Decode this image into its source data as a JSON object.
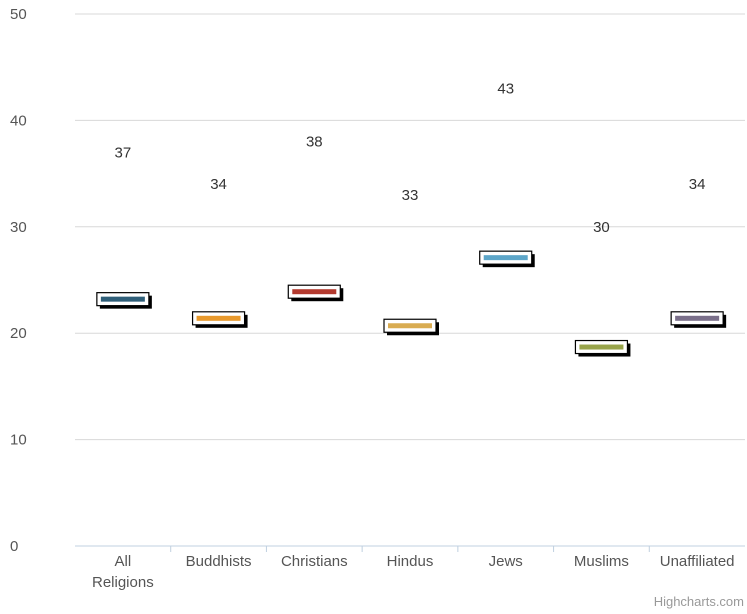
{
  "chart_data": {
    "type": "bar",
    "categories": [
      "All\nReligions",
      "Buddhists",
      "Christians",
      "Hindus",
      "Jews",
      "Muslims",
      "Unaffiliated"
    ],
    "bar_values": [
      23.2,
      21.4,
      23.9,
      20.7,
      27.1,
      18.7,
      21.4
    ],
    "data_labels": [
      37,
      34,
      38,
      33,
      43,
      30,
      34
    ],
    "colors": [
      "#2f5f79",
      "#e8992c",
      "#b33a2f",
      "#d9ac52",
      "#5da6c9",
      "#98a44a",
      "#7a6f8a"
    ],
    "ylim": [
      0,
      50
    ],
    "yticks": [
      0,
      10,
      20,
      30,
      40,
      50
    ],
    "grid": true,
    "credit": "Highcharts.com"
  }
}
